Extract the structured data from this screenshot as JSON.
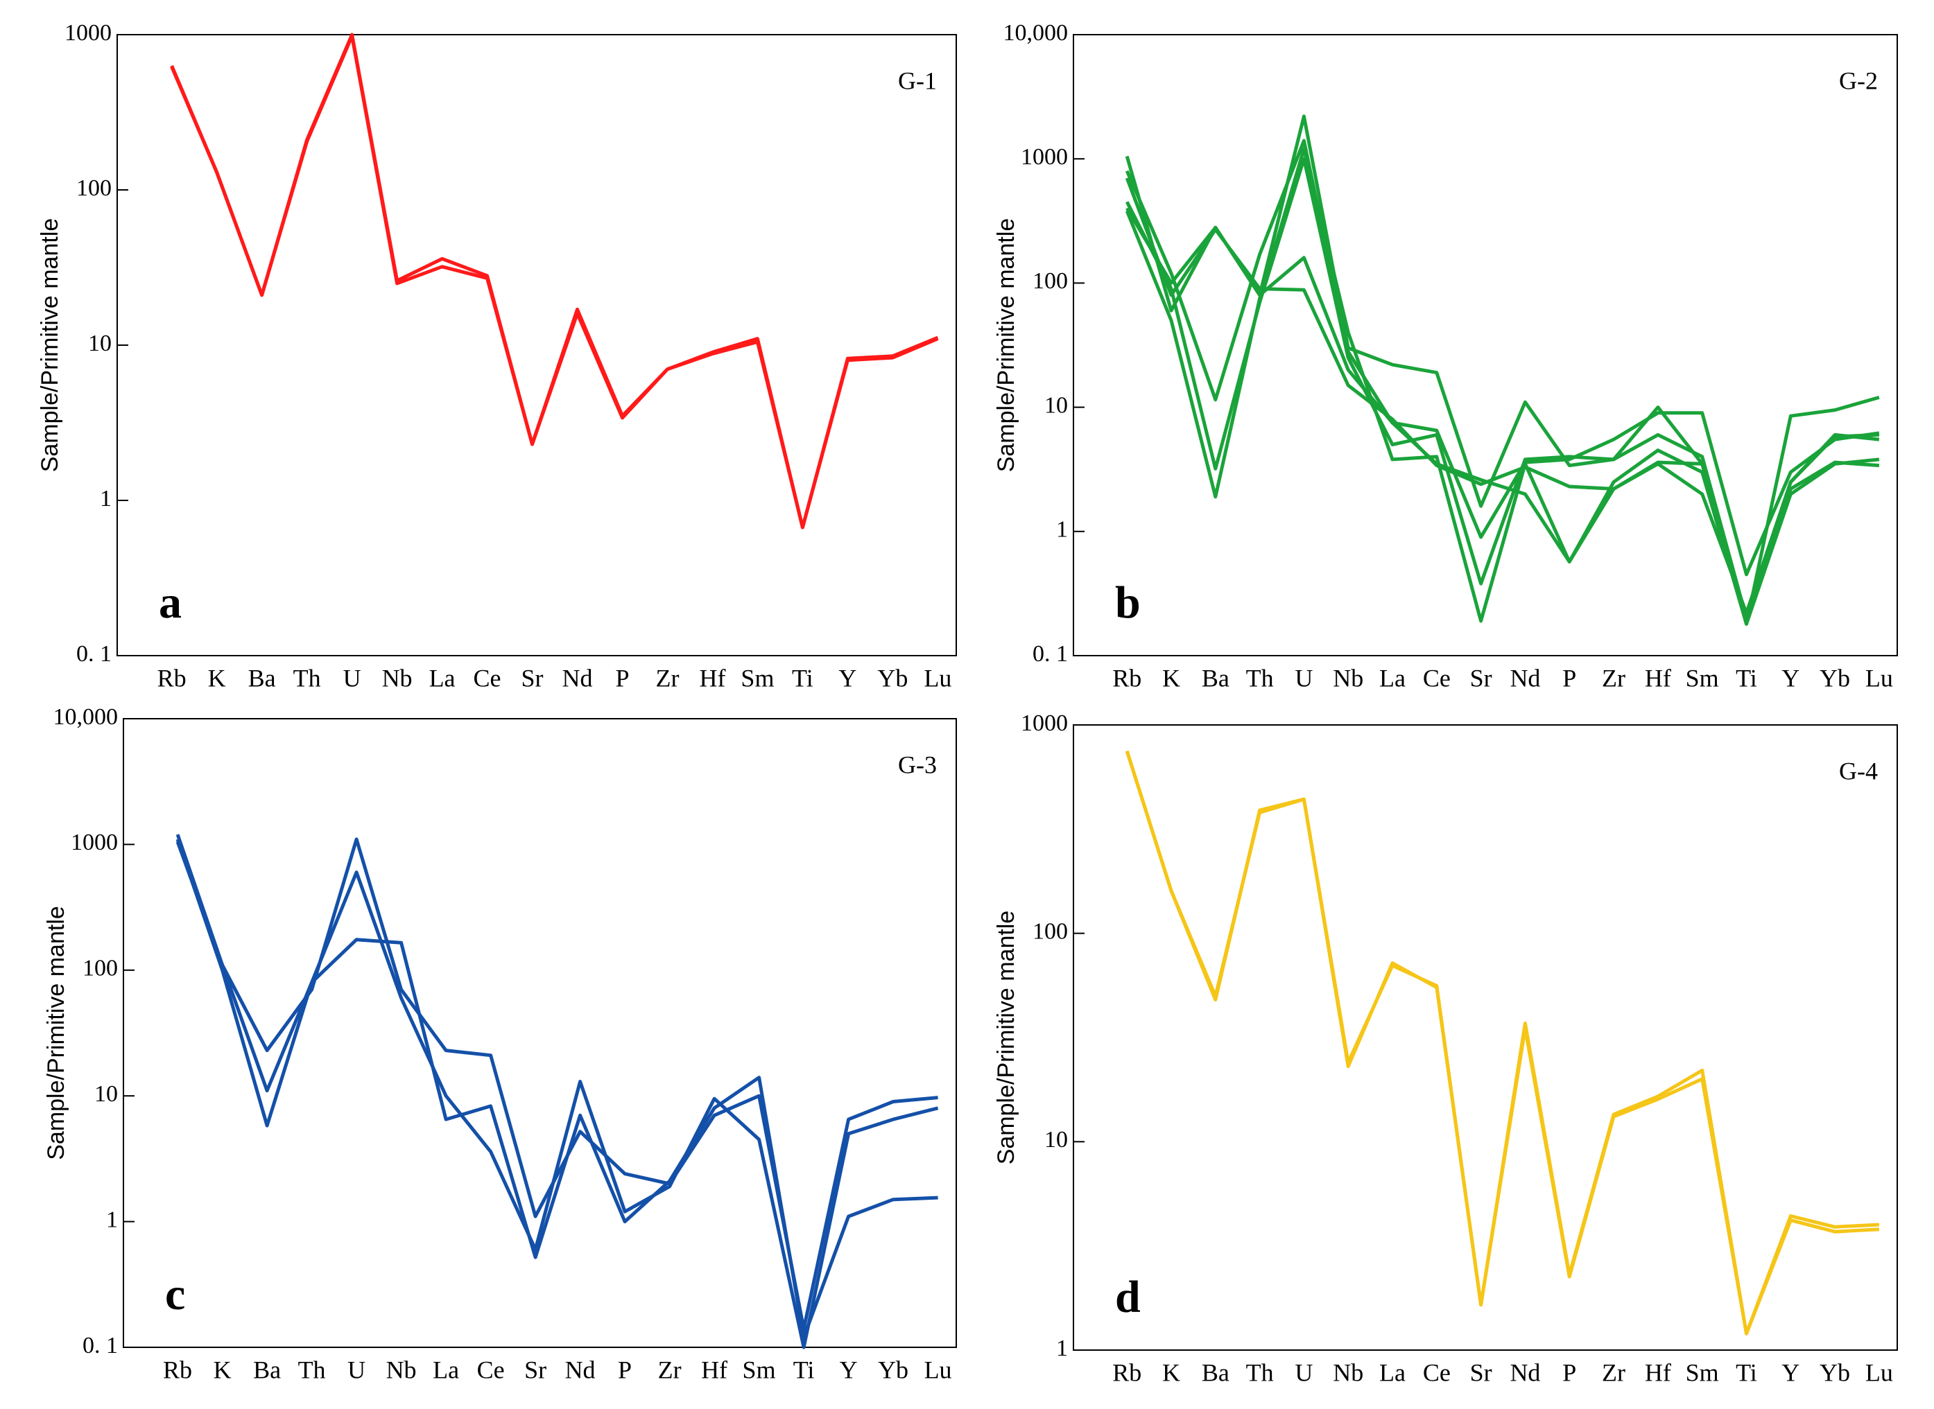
{
  "chart_data": [
    {
      "type": "line",
      "label": "G-1",
      "panel": "a",
      "ylabel": "Sample/Primitive mantle",
      "log_scale": true,
      "categories": [
        "Rb",
        "K",
        "Ba",
        "Th",
        "U",
        "Nb",
        "La",
        "Ce",
        "Sr",
        "Nd",
        "P",
        "Zr",
        "Hf",
        "Sm",
        "Ti",
        "Y",
        "Yb",
        "Lu"
      ],
      "ylim": [
        0.1,
        1000
      ],
      "yticks": [
        {
          "value": 0.1,
          "label": "0. 1"
        },
        1,
        10,
        100,
        1000
      ],
      "series": [
        {
          "color": "#ff1a1a",
          "values": [
            630,
            130,
            21,
            210,
            1000,
            26,
            36,
            28,
            2.3,
            17,
            3.5,
            7,
            9,
            11,
            0.67,
            8.2,
            8.5,
            11.2
          ]
        },
        {
          "color": "#ff1a1a",
          "values": [
            620,
            130,
            21,
            205,
            980,
            25,
            32,
            27,
            2.3,
            16,
            3.4,
            7,
            8.8,
            10.5,
            0.67,
            8,
            8.3,
            11
          ]
        }
      ]
    },
    {
      "type": "line",
      "label": "G-2",
      "panel": "b",
      "ylabel": "Sample/Primitive mantle",
      "log_scale": true,
      "categories": [
        "Rb",
        "K",
        "Ba",
        "Th",
        "U",
        "Nb",
        "La",
        "Ce",
        "Sr",
        "Nd",
        "P",
        "Zr",
        "Hf",
        "Sm",
        "Ti",
        "Y",
        "Yb",
        "Lu"
      ],
      "ylim": [
        0.1,
        10000
      ],
      "yticks": [
        {
          "value": 0.1,
          "label": "0. 1"
        },
        1,
        10,
        100,
        1000,
        {
          "value": 10000,
          "label": "10,000"
        }
      ],
      "series": [
        {
          "color": "#1aa33a",
          "values": [
            1050,
            60,
            280,
            80,
            2200,
            30,
            22,
            19,
            1.6,
            11,
            3.4,
            3.8,
            10,
            3.5,
            0.18,
            8.5,
            9.5,
            12
          ]
        },
        {
          "color": "#1aa33a",
          "values": [
            800,
            120,
            11.5,
            170,
            1400,
            28,
            7.5,
            6.5,
            0.9,
            3.6,
            3.8,
            5.5,
            9,
            9,
            0.45,
            3,
            5.5,
            6.2
          ]
        },
        {
          "color": "#1aa33a",
          "values": [
            450,
            90,
            3.2,
            70,
            1000,
            25,
            5,
            6,
            0.38,
            3.8,
            4,
            3.8,
            6,
            4,
            0.2,
            2.5,
            5.8,
            6
          ]
        },
        {
          "color": "#1aa33a",
          "values": [
            380,
            50,
            1.9,
            75,
            1200,
            40,
            3.8,
            4,
            0.19,
            3.5,
            0.57,
            2.5,
            4.5,
            3,
            0.18,
            2,
            3.5,
            3.8
          ]
        },
        {
          "color": "#1aa33a",
          "values": [
            400,
            100,
            280,
            80,
            160,
            20,
            7.5,
            3.5,
            2.6,
            2,
            0.57,
            2.2,
            3.6,
            3.5,
            0.2,
            2.2,
            3.6,
            3.4
          ]
        },
        {
          "color": "#1aa33a",
          "values": [
            700,
            80,
            270,
            90,
            88,
            15,
            8,
            3.4,
            2.4,
            3.3,
            2.3,
            2.2,
            3.5,
            2,
            0.22,
            2.5,
            6,
            5.5
          ]
        }
      ]
    },
    {
      "type": "line",
      "label": "G-3",
      "panel": "c",
      "ylabel": "Sample/Primitive mantle",
      "log_scale": true,
      "categories": [
        "Rb",
        "K",
        "Ba",
        "Th",
        "U",
        "Nb",
        "La",
        "Ce",
        "Sr",
        "Nd",
        "P",
        "Zr",
        "Hf",
        "Sm",
        "Ti",
        "Y",
        "Yb",
        "Lu"
      ],
      "ylim": [
        0.1,
        10000
      ],
      "yticks": [
        {
          "value": 0.1,
          "label": "0. 1"
        },
        1,
        10,
        100,
        1000,
        {
          "value": 10000,
          "label": "10,000"
        }
      ],
      "series": [
        {
          "color": "#1450a8",
          "values": [
            1200,
            110,
            23,
            70,
            1100,
            70,
            23,
            21,
            1.1,
            5.2,
            2.4,
            2,
            7,
            10,
            0.14,
            6.5,
            9,
            9.7
          ]
        },
        {
          "color": "#1450a8",
          "values": [
            1100,
            100,
            5.8,
            80,
            600,
            60,
            10,
            3.6,
            0.6,
            13,
            1.2,
            1.9,
            9.5,
            4.5,
            0.1,
            5,
            6.5,
            8
          ]
        },
        {
          "color": "#1450a8",
          "values": [
            1050,
            110,
            11,
            80,
            175,
            165,
            6.5,
            8.3,
            0.52,
            7,
            1,
            2.1,
            8,
            14,
            0.12,
            1.1,
            1.5,
            1.55
          ]
        }
      ]
    },
    {
      "type": "line",
      "label": "G-4",
      "panel": "d",
      "ylabel": "Sample/Primitive mantle",
      "log_scale": true,
      "categories": [
        "Rb",
        "K",
        "Ba",
        "Th",
        "U",
        "Nb",
        "La",
        "Ce",
        "Sr",
        "Nd",
        "P",
        "Zr",
        "Hf",
        "Sm",
        "Ti",
        "Y",
        "Yb",
        "Lu"
      ],
      "ylim": [
        1,
        1000
      ],
      "yticks": [
        1,
        10,
        100,
        1000
      ],
      "series": [
        {
          "color": "#f5c518",
          "values": [
            750,
            160,
            48,
            390,
            440,
            23,
            72,
            55,
            1.65,
            37,
            2.3,
            13.5,
            16.5,
            22,
            1.2,
            4.4,
            3.9,
            4
          ]
        },
        {
          "color": "#f5c518",
          "values": [
            750,
            160,
            50,
            380,
            440,
            24,
            70,
            56,
            1.65,
            35,
            2.25,
            13.2,
            16,
            20,
            1.2,
            4.2,
            3.7,
            3.8
          ]
        }
      ]
    }
  ]
}
